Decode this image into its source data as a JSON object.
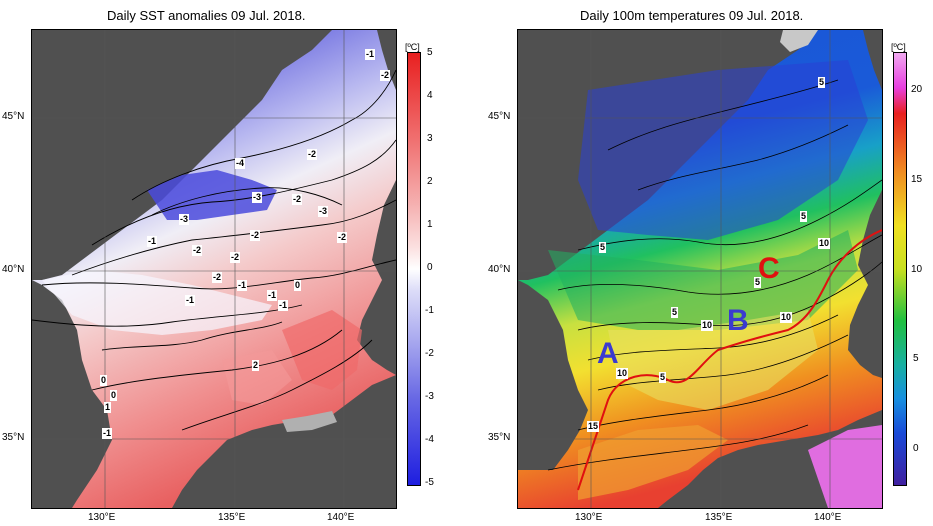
{
  "left_panel": {
    "title": "Daily SST anomalies 09 Jul. 2018.",
    "unit": "[ºC]",
    "lat_labels": [
      "45°N",
      "40°N",
      "35°N"
    ],
    "lon_labels": [
      "130°E",
      "135°E",
      "140°E"
    ],
    "colorbar_ticks": [
      "5",
      "4",
      "3",
      "2",
      "1",
      "0",
      "-1",
      "-2",
      "-3",
      "-4",
      "-5"
    ],
    "contour_labels": [
      "-1",
      "-2",
      "-4",
      "-2",
      "-3",
      "-2",
      "-3",
      "-3",
      "-2",
      "-1",
      "-2",
      "-2",
      "-1",
      "-2",
      "-1",
      "0",
      "-1",
      "0",
      "1",
      "2",
      "0",
      "-1",
      "-1",
      "-2"
    ]
  },
  "right_panel": {
    "title": "Daily 100m temperatures 09 Jul. 2018.",
    "unit": "[ºC]",
    "lat_labels": [
      "45°N",
      "40°N",
      "35°N"
    ],
    "lon_labels": [
      "130°E",
      "135°E",
      "140°E"
    ],
    "colorbar_ticks": [
      "20",
      "15",
      "10",
      "5",
      "0"
    ],
    "contour_labels": [
      "5",
      "5",
      "5",
      "10",
      "5",
      "5",
      "10",
      "10",
      "10",
      "15",
      "5"
    ],
    "region_labels": [
      "A",
      "B",
      "C"
    ],
    "colors": {
      "region_ab": "#3a3ad0",
      "region_c": "#e01010",
      "front_line": "#e01010"
    }
  }
}
